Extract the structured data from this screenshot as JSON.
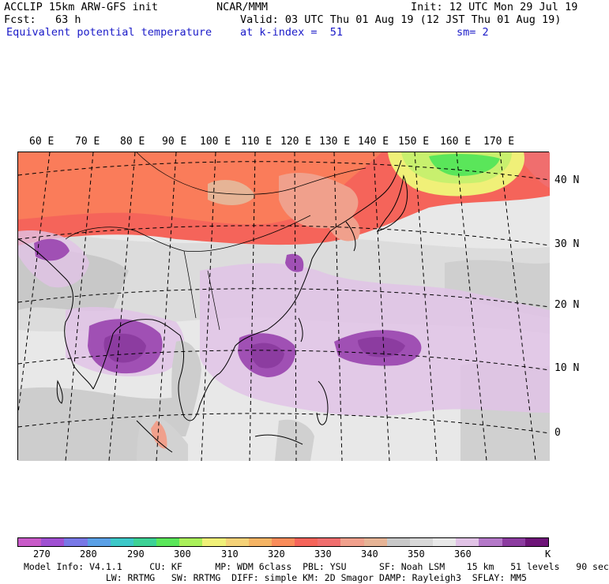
{
  "header": {
    "line1_left": "ACCLIP 15km ARW-GFS init",
    "line1_mid": "NCAR/MMM",
    "line1_right": "Init: 12 UTC Mon 29 Jul 19",
    "line2_left": "Fcst:   63 h",
    "line2_right": "Valid: 03 UTC Thu 01 Aug 19 (12 JST Thu 01 Aug 19)",
    "line3_left": "Equivalent potential temperature",
    "line3_mid": "at k-index =  51",
    "line3_right": "sm= 2"
  },
  "lon_labels": [
    "60 E",
    "70 E",
    "80 E",
    "90 E",
    "100 E",
    "110 E",
    "120 E",
    "130 E",
    "140 E",
    "150 E",
    "160 E",
    "170 E"
  ],
  "lat_labels": [
    "40 N",
    "30 N",
    "20 N",
    "10 N",
    "0"
  ],
  "colorbar": {
    "colors": [
      "#c85ac8",
      "#a050d2",
      "#7878e6",
      "#5aa0e6",
      "#3cc8c8",
      "#3cd296",
      "#5ae65a",
      "#aaf05a",
      "#f0f078",
      "#f5d278",
      "#f5b464",
      "#fa8c5a",
      "#f5645a",
      "#f06e6e",
      "#f0a08c",
      "#e6b496",
      "#c8c8c8",
      "#d8d8d8",
      "#e8e8e8",
      "#e1c3e6",
      "#b478c8",
      "#8c3ca0",
      "#6e1478"
    ],
    "ticks": [
      "270",
      "280",
      "290",
      "300",
      "310",
      "320",
      "330",
      "340",
      "350",
      "360"
    ],
    "unit": "K"
  },
  "footer": {
    "line1": "Model Info: V4.1.1     CU: KF      MP: WDM 6class  PBL: YSU      SF: Noah LSM    15 km   51 levels   90 sec",
    "line2": "               LW: RRTMG   SW: RRTMG  DIFF: simple KM: 2D Smagor DAMP: Rayleigh3  SFLAY: MM5"
  },
  "map_colors": {
    "warm_red": "#f5645a",
    "red_orange": "#fa7c5a",
    "salmon": "#f0a08c",
    "tan": "#e6b496",
    "gray": "#c8c8c8",
    "light_gray": "#dcdcdc",
    "very_light": "#ececec",
    "lavender": "#e1c3e6",
    "purple": "#a050b4",
    "dark_purple": "#8c3ca0",
    "green": "#5ae65a",
    "yellow_green": "#c8f06e",
    "yellow": "#f0f078"
  }
}
